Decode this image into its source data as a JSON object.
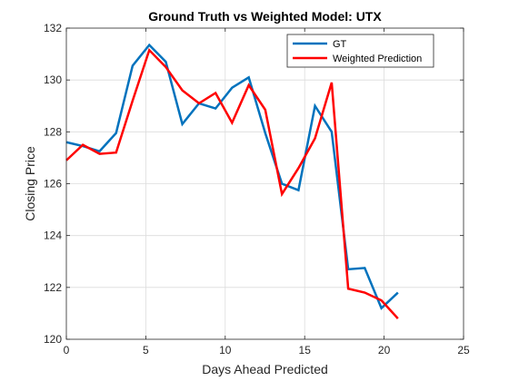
{
  "chart_data": {
    "type": "line",
    "title": "Ground Truth vs Weighted Model: UTX",
    "xlabel": "Days Ahead Predicted",
    "ylabel": "Closing Price",
    "xlim": [
      0,
      25
    ],
    "ylim": [
      120,
      132
    ],
    "xticks": [
      0,
      5,
      10,
      15,
      20,
      25
    ],
    "yticks": [
      120,
      122,
      124,
      126,
      128,
      130,
      132
    ],
    "grid": true,
    "legend_position": "top-right",
    "x": [
      0,
      1.04,
      2.09,
      3.13,
      4.17,
      5.22,
      6.26,
      7.3,
      8.35,
      9.39,
      10.43,
      11.48,
      12.52,
      13.57,
      14.61,
      15.65,
      16.7,
      17.74,
      18.78,
      19.83,
      20.87
    ],
    "series": [
      {
        "name": "GT",
        "color": "#0072BD",
        "values": [
          127.6,
          127.45,
          127.25,
          127.95,
          130.55,
          131.35,
          130.7,
          128.3,
          129.1,
          128.9,
          129.7,
          130.1,
          127.95,
          126.0,
          125.75,
          129.0,
          128.0,
          122.7,
          122.75,
          121.2,
          121.8
        ]
      },
      {
        "name": "Weighted Prediction",
        "color": "#FF0000",
        "values": [
          126.9,
          127.5,
          127.15,
          127.2,
          129.2,
          131.15,
          130.5,
          129.6,
          129.1,
          129.5,
          128.35,
          129.8,
          128.85,
          125.6,
          126.6,
          127.75,
          129.9,
          121.95,
          121.8,
          121.5,
          120.8
        ]
      }
    ]
  }
}
